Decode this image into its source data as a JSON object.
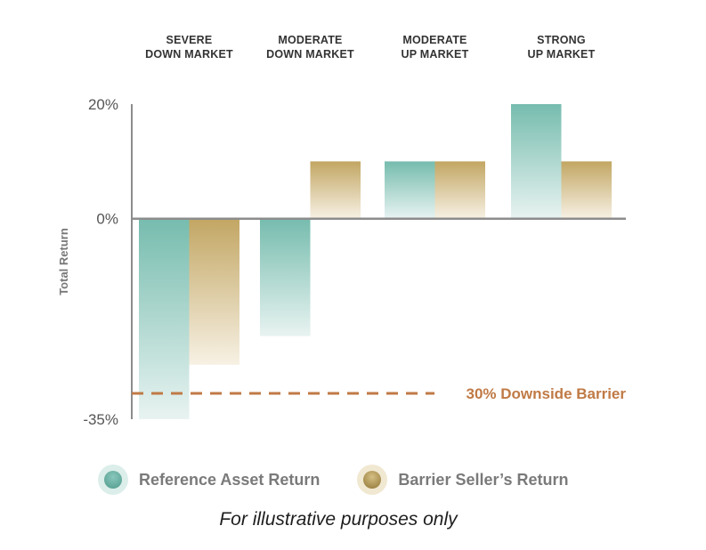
{
  "chart_data": {
    "type": "bar",
    "categories": [
      [
        "SEVERE",
        "DOWN MARKET"
      ],
      [
        "MODERATE",
        "DOWN MARKET"
      ],
      [
        "MODERATE",
        "UP MARKET"
      ],
      [
        "STRONG",
        "UP MARKET"
      ]
    ],
    "series": [
      {
        "name": "Reference Asset Return",
        "values": [
          -35,
          -20.5,
          10,
          20
        ],
        "color": "#7bbfb2"
      },
      {
        "name": "Barrier Seller’s Return",
        "values": [
          -25.5,
          10,
          10,
          10
        ],
        "color": "#c4aa6a"
      }
    ],
    "ylabel": "Total Return",
    "ylim": [
      -35,
      20
    ],
    "yticks": [
      "20%",
      "0%",
      "-35%"
    ],
    "ytick_values": [
      20,
      0,
      -35
    ],
    "barrier": {
      "value": -30.5,
      "label": "30% Downside Barrier",
      "color": "#c07a45"
    },
    "legend_position": "bottom"
  },
  "legend": {
    "items": [
      {
        "label": "Reference Asset Return",
        "color": "#7bbfb2"
      },
      {
        "label": "Barrier Seller’s Return",
        "color": "#c4aa6a"
      }
    ]
  },
  "footnote": "For illustrative purposes only"
}
